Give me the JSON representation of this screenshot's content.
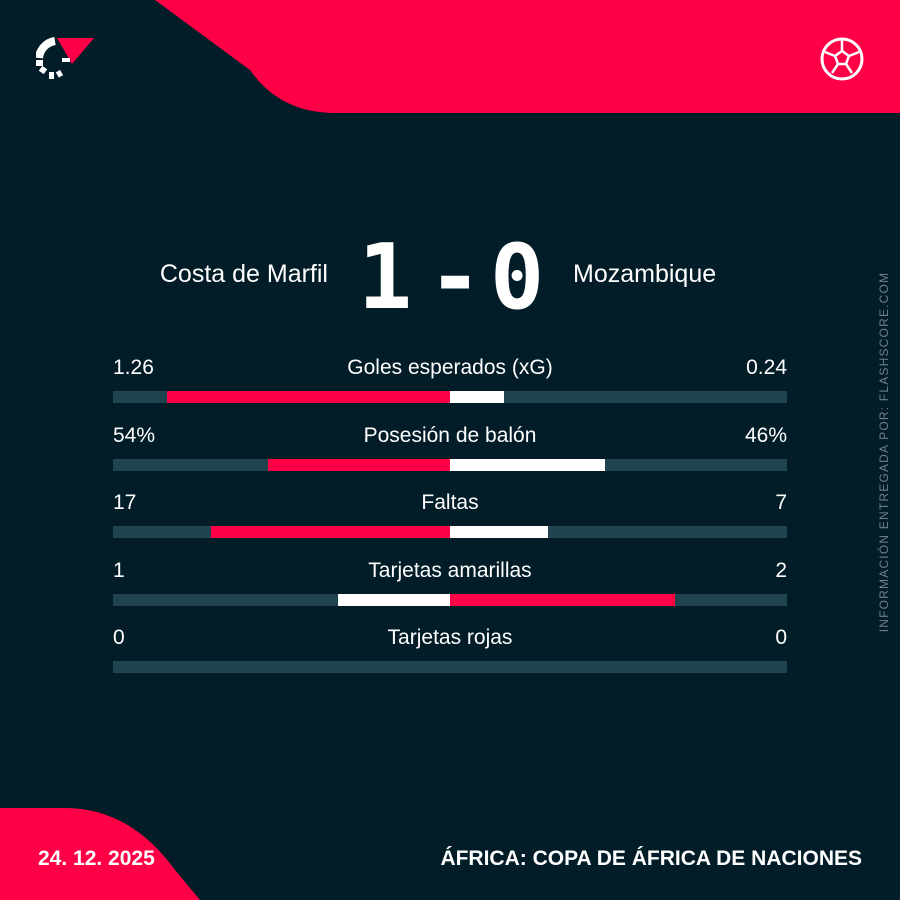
{
  "colors": {
    "background": "#021d28",
    "accent": "#ff0046",
    "track": "#1f4450",
    "white": "#ffffff"
  },
  "header": {
    "logo_icon": "flashscore-logo",
    "sport_icon": "soccer-ball-icon"
  },
  "match": {
    "home_team": "Costa de Marfil",
    "away_team": "Mozambique",
    "home_score": "1",
    "separator": "-",
    "away_score": "0"
  },
  "stats": [
    {
      "label": "Goles esperados (xG)",
      "home": "1.26",
      "away": "0.24",
      "home_value": 1.26,
      "away_value": 0.24
    },
    {
      "label": "Posesión de balón",
      "home": "54%",
      "away": "46%",
      "home_value": 54,
      "away_value": 46
    },
    {
      "label": "Faltas",
      "home": "17",
      "away": "7",
      "home_value": 17,
      "away_value": 7
    },
    {
      "label": "Tarjetas amarillas",
      "home": "1",
      "away": "2",
      "home_value": 1,
      "away_value": 2
    },
    {
      "label": "Tarjetas rojas",
      "home": "0",
      "away": "0",
      "home_value": 0,
      "away_value": 0
    }
  ],
  "side_credit": "INFORMACIÓN ENTREGADA POR: FLASHSCORE.COM",
  "footer": {
    "date": "24. 12. 2025",
    "competition": "ÁFRICA: COPA DE ÁFRICA DE NACIONES"
  }
}
